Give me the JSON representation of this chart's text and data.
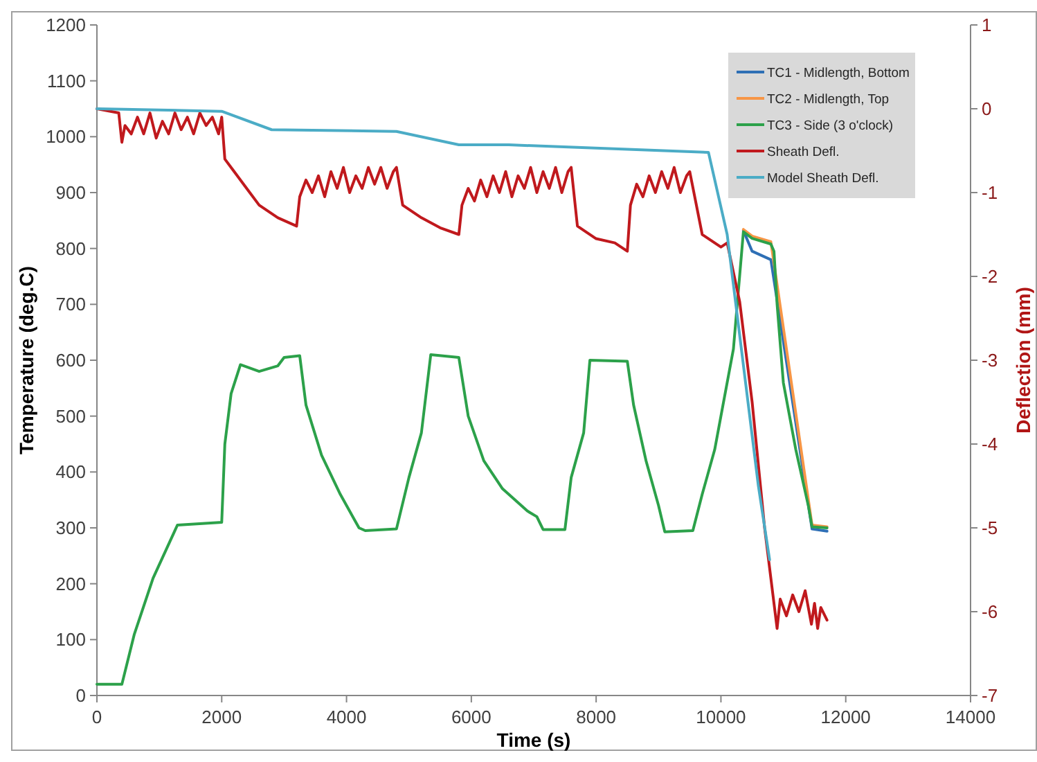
{
  "chart_data": {
    "type": "line",
    "xlabel": "Time (s)",
    "ylabel": "Temperature (deg.C)",
    "y2label": "Deflection (mm)",
    "xlim": [
      0,
      14000
    ],
    "xticks": [
      0,
      2000,
      4000,
      6000,
      8000,
      10000,
      12000,
      14000
    ],
    "ylim": [
      0,
      1200
    ],
    "yticks": [
      0,
      100,
      200,
      300,
      400,
      500,
      600,
      700,
      800,
      900,
      1000,
      1100,
      1200
    ],
    "y2lim": [
      -7,
      1
    ],
    "y2ticks": [
      -7,
      -6,
      -5,
      -4,
      -3,
      -2,
      -1,
      0,
      1
    ],
    "grid": false,
    "legend": "top right",
    "marker": "none",
    "line_style": "solid",
    "series": [
      {
        "name": "TC1 - Midlength, Bottom",
        "color": "#2e6fb5",
        "x": [
          10360,
          10500,
          10800,
          11460,
          11700
        ],
        "values": [
          832,
          795,
          780,
          298,
          294
        ]
      },
      {
        "name": "TC2 - Midlength, Top",
        "color": "#f79646",
        "x": [
          10360,
          10500,
          10800,
          11460,
          11700
        ],
        "values": [
          834,
          822,
          812,
          305,
          302
        ]
      },
      {
        "name": "TC3 - Side (3 o'clock)",
        "color": "#2ca14a",
        "x": [
          0,
          400,
          600,
          900,
          1290,
          2000,
          2050,
          2150,
          2300,
          2600,
          2900,
          3000,
          3250,
          3350,
          3600,
          3900,
          4200,
          4300,
          4800,
          5000,
          5200,
          5350,
          5800,
          5950,
          6200,
          6500,
          6900,
          7050,
          7150,
          7500,
          7600,
          7800,
          7900,
          8500,
          8600,
          8800,
          9000,
          9100,
          9550,
          9700,
          9900,
          10000,
          10200,
          10360,
          10500,
          10800,
          10850,
          10900,
          11000,
          11200,
          11400,
          11460,
          11700
        ],
        "values": [
          20,
          20,
          110,
          210,
          305,
          310,
          450,
          540,
          592,
          580,
          590,
          605,
          608,
          520,
          430,
          360,
          300,
          295,
          298,
          390,
          470,
          610,
          605,
          500,
          420,
          370,
          330,
          320,
          297,
          297,
          390,
          470,
          600,
          598,
          520,
          420,
          340,
          293,
          295,
          360,
          440,
          500,
          620,
          830,
          818,
          808,
          795,
          700,
          560,
          440,
          340,
          302,
          300
        ]
      },
      {
        "name": "Sheath Defl.",
        "color": "#c0191d",
        "axis": "y2",
        "x": [
          0,
          350,
          400,
          450,
          550,
          650,
          750,
          850,
          950,
          1050,
          1150,
          1250,
          1350,
          1450,
          1550,
          1650,
          1750,
          1850,
          1950,
          2000,
          2050,
          2200,
          2400,
          2600,
          2900,
          3200,
          3250,
          3350,
          3450,
          3550,
          3650,
          3750,
          3850,
          3950,
          4050,
          4150,
          4250,
          4350,
          4450,
          4550,
          4650,
          4750,
          4800,
          4900,
          5200,
          5500,
          5800,
          5850,
          5950,
          6050,
          6150,
          6250,
          6350,
          6450,
          6550,
          6650,
          6750,
          6850,
          6950,
          7050,
          7150,
          7250,
          7350,
          7450,
          7550,
          7600,
          7700,
          8000,
          8300,
          8500,
          8550,
          8650,
          8750,
          8850,
          8950,
          9050,
          9150,
          9250,
          9350,
          9450,
          9500,
          9700,
          10000,
          10100,
          10300,
          10500,
          10700,
          10850,
          10900,
          10950,
          11050,
          11150,
          11250,
          11350,
          11450,
          11500,
          11550,
          11600,
          11700
        ],
        "values": [
          0,
          -0.05,
          -0.4,
          -0.2,
          -0.3,
          -0.1,
          -0.3,
          -0.05,
          -0.35,
          -0.15,
          -0.3,
          -0.05,
          -0.25,
          -0.1,
          -0.3,
          -0.05,
          -0.2,
          -0.1,
          -0.3,
          -0.1,
          -0.6,
          -0.75,
          -0.95,
          -1.15,
          -1.3,
          -1.4,
          -1.05,
          -0.85,
          -1.0,
          -0.8,
          -1.05,
          -0.75,
          -0.95,
          -0.7,
          -1.0,
          -0.8,
          -0.95,
          -0.7,
          -0.9,
          -0.7,
          -0.95,
          -0.75,
          -0.7,
          -1.15,
          -1.3,
          -1.42,
          -1.5,
          -1.15,
          -0.95,
          -1.1,
          -0.85,
          -1.05,
          -0.8,
          -1.0,
          -0.75,
          -1.05,
          -0.8,
          -0.95,
          -0.7,
          -1.0,
          -0.75,
          -0.95,
          -0.7,
          -1.0,
          -0.75,
          -0.7,
          -1.4,
          -1.55,
          -1.6,
          -1.7,
          -1.15,
          -0.9,
          -1.05,
          -0.8,
          -1.0,
          -0.75,
          -0.95,
          -0.7,
          -1.0,
          -0.8,
          -0.75,
          -1.5,
          -1.65,
          -1.6,
          -2.3,
          -3.5,
          -5.0,
          -5.9,
          -6.2,
          -5.85,
          -6.05,
          -5.8,
          -6.0,
          -5.75,
          -6.15,
          -5.9,
          -6.2,
          -5.95,
          -6.1
        ]
      },
      {
        "name": "Model Sheath Defl.",
        "color": "#4bacc6",
        "axis": "y2",
        "x": [
          0,
          2000,
          2800,
          4800,
          5800,
          6600,
          9800,
          10100,
          10400,
          10600,
          10780
        ],
        "values": [
          0,
          -0.03,
          -0.25,
          -0.27,
          -0.43,
          -0.43,
          -0.52,
          -1.5,
          -3.3,
          -4.5,
          -5.38
        ]
      }
    ]
  }
}
